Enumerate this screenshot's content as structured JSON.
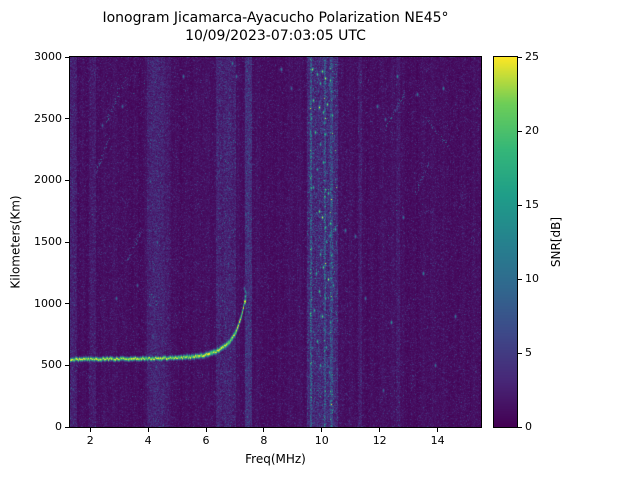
{
  "chart_data": {
    "type": "heatmap",
    "title": "Ionogram Jicamarca-Ayacucho Polarization NE45°",
    "subtitle": "10/09/2023-07:03:05 UTC",
    "xlabel": "Freq(MHz)",
    "ylabel": "Kilometers(Km)",
    "xlim": [
      1.3,
      15.5
    ],
    "ylim": [
      0,
      3000
    ],
    "x_ticks": [
      2,
      4,
      6,
      8,
      10,
      12,
      14
    ],
    "y_ticks": [
      0,
      500,
      1000,
      1500,
      2000,
      2500,
      3000
    ],
    "grid": false,
    "colorbar": {
      "label": "SNR[dB]",
      "min": 0,
      "max": 25,
      "ticks": [
        0,
        5,
        10,
        15,
        20,
        25
      ],
      "colormap": "viridis"
    },
    "colors": {
      "figure_background": "#ffffff",
      "cmap_low": "#440154",
      "cmap_high": "#fde725",
      "axis": "#000000"
    },
    "echo_trace": {
      "description": "F-layer ionogram echo, flat near 555 km then rising to critical frequency ~7.3 MHz",
      "snr_db": 25,
      "points": [
        [
          1.3,
          552
        ],
        [
          2.0,
          554
        ],
        [
          3.0,
          556
        ],
        [
          4.0,
          558
        ],
        [
          5.0,
          563
        ],
        [
          5.6,
          574
        ],
        [
          6.0,
          590
        ],
        [
          6.3,
          612
        ],
        [
          6.6,
          648
        ],
        [
          6.8,
          692
        ],
        [
          6.95,
          742
        ],
        [
          7.1,
          812
        ],
        [
          7.2,
          888
        ],
        [
          7.28,
          958
        ],
        [
          7.33,
          1020
        ]
      ]
    },
    "rfi_bands": [
      {
        "range": [
          1.3,
          1.55
        ],
        "boost": 1.2,
        "speckle": 0.3
      },
      {
        "range": [
          1.95,
          2.2
        ],
        "boost": 1.0,
        "speckle": 0.2
      },
      {
        "range": [
          3.95,
          4.55
        ],
        "boost": 1.4,
        "speckle": 0.4
      },
      {
        "range": [
          4.55,
          4.8
        ],
        "boost": 0.8,
        "speckle": 0.2
      },
      {
        "range": [
          6.35,
          7.05
        ],
        "boost": 1.4,
        "speckle": 0.5
      },
      {
        "range": [
          7.35,
          7.6
        ],
        "boost": 2.2,
        "speckle": 0.6
      },
      {
        "range": [
          9.5,
          10.55
        ],
        "boost": 1.6,
        "speckle": 1.1
      },
      {
        "range": [
          9.58,
          9.66
        ],
        "boost": 2.6,
        "speckle": 1.4
      },
      {
        "range": [
          10.08,
          10.16
        ],
        "boost": 2.6,
        "speckle": 1.4
      },
      {
        "range": [
          10.3,
          10.4
        ],
        "boost": 2.0,
        "speckle": 1.0
      },
      {
        "range": [
          11.25,
          11.4
        ],
        "boost": 0.9,
        "speckle": 0.3
      },
      {
        "range": [
          12.55,
          12.7
        ],
        "boost": 0.9,
        "speckle": 0.3
      }
    ],
    "bright_spots": [
      [
        9.65,
        2900,
        24
      ],
      [
        9.82,
        2860,
        20
      ],
      [
        10.0,
        2890,
        23
      ],
      [
        10.12,
        2830,
        25
      ],
      [
        9.95,
        2790,
        19
      ],
      [
        10.3,
        2815,
        21
      ],
      [
        9.7,
        2650,
        22
      ],
      [
        9.9,
        2595,
        25
      ],
      [
        10.05,
        2555,
        20
      ],
      [
        10.17,
        2615,
        23
      ],
      [
        9.62,
        2505,
        18
      ],
      [
        10.35,
        2530,
        20
      ],
      [
        9.75,
        2395,
        21
      ],
      [
        10.1,
        2375,
        18
      ],
      [
        9.95,
        2295,
        17
      ],
      [
        10.05,
        2150,
        19
      ],
      [
        9.85,
        2095,
        16
      ],
      [
        9.7,
        1950,
        18
      ],
      [
        10.2,
        1895,
        20
      ],
      [
        9.9,
        1750,
        23
      ],
      [
        10.02,
        1700,
        25
      ],
      [
        10.28,
        1655,
        21
      ],
      [
        10.45,
        1605,
        18
      ],
      [
        10.12,
        1625,
        20
      ],
      [
        9.62,
        1450,
        17
      ],
      [
        9.95,
        1400,
        19
      ],
      [
        10.05,
        1300,
        22
      ],
      [
        9.8,
        1250,
        18
      ],
      [
        10.2,
        1200,
        24
      ],
      [
        10.4,
        1150,
        17
      ],
      [
        9.9,
        1100,
        21
      ],
      [
        10.1,
        1050,
        19
      ],
      [
        9.72,
        950,
        18
      ],
      [
        10.0,
        900,
        22
      ],
      [
        10.3,
        855,
        17
      ],
      [
        9.85,
        700,
        19
      ],
      [
        10.15,
        650,
        16
      ],
      [
        9.95,
        500,
        18
      ],
      [
        10.25,
        450,
        15
      ],
      [
        9.62,
        350,
        14
      ],
      [
        11.9,
        2600,
        13
      ],
      [
        12.6,
        2850,
        15
      ],
      [
        13.3,
        2700,
        12
      ],
      [
        14.2,
        2745,
        14
      ],
      [
        12.2,
        2500,
        11
      ],
      [
        12.8,
        1700,
        12
      ],
      [
        13.5,
        1250,
        14
      ],
      [
        12.4,
        850,
        16
      ],
      [
        11.5,
        1050,
        12
      ],
      [
        8.6,
        2900,
        13
      ],
      [
        8.95,
        2750,
        11
      ],
      [
        5.2,
        2850,
        12
      ],
      [
        3.1,
        2600,
        11
      ],
      [
        2.4,
        2450,
        10
      ],
      [
        4.3,
        1500,
        11
      ],
      [
        3.6,
        1150,
        10
      ],
      [
        2.9,
        1050,
        12
      ],
      [
        6.9,
        2950,
        14
      ],
      [
        7.05,
        2850,
        12
      ],
      [
        13.9,
        500,
        12
      ],
      [
        14.6,
        900,
        13
      ],
      [
        12.1,
        300,
        11
      ],
      [
        10.8,
        1600,
        13
      ],
      [
        11.15,
        1545,
        12
      ],
      [
        7.33,
        1060,
        20
      ],
      [
        7.36,
        1100,
        15
      ],
      [
        7.3,
        1130,
        12
      ]
    ],
    "streaks": [
      {
        "from": [
          12.15,
          2430
        ],
        "to": [
          12.95,
          2740
        ],
        "snr": 9
      },
      {
        "from": [
          13.55,
          2520
        ],
        "to": [
          14.35,
          2280
        ],
        "snr": 8
      },
      {
        "from": [
          2.55,
          2480
        ],
        "to": [
          3.2,
          2840
        ],
        "snr": 8
      },
      {
        "from": [
          2.2,
          2080
        ],
        "to": [
          2.65,
          2350
        ],
        "snr": 7
      },
      {
        "from": [
          9.95,
          1430
        ],
        "to": [
          10.5,
          1640
        ],
        "snr": 12
      },
      {
        "from": [
          3.3,
          1350
        ],
        "to": [
          3.75,
          1600
        ],
        "snr": 7
      },
      {
        "from": [
          13.2,
          1900
        ],
        "to": [
          13.7,
          2150
        ],
        "snr": 7
      }
    ],
    "noise": {
      "seed": 1234567,
      "speckle_mean": 0.85
    }
  }
}
